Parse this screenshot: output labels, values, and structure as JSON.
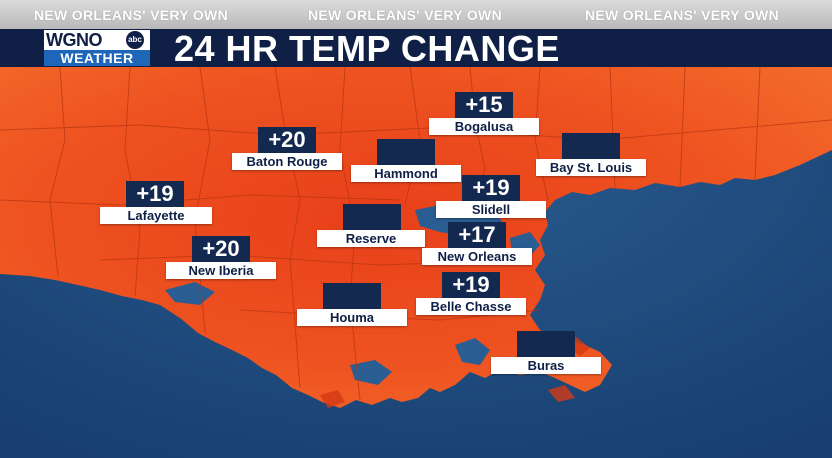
{
  "banner": {
    "slogans": [
      "NEW ORLEANS' VERY OWN",
      "NEW ORLEANS' VERY OWN",
      "NEW ORLEANS' VERY OWN"
    ],
    "title": "24 HR TEMP CHANGE"
  },
  "logo": {
    "station": "WGNO",
    "network": "abc",
    "tagline": "WEATHER"
  },
  "colors": {
    "land_hot": "#ee4a1a",
    "land_warm": "#f46a2a",
    "water": "#1d4f86",
    "banner_dark": "#0f1f45",
    "label_box": "#13294f"
  },
  "cities": [
    {
      "name": "Bogalusa",
      "value": "+15"
    },
    {
      "name": "Baton Rouge",
      "value": "+20"
    },
    {
      "name": "Hammond",
      "value": ""
    },
    {
      "name": "Bay St. Louis",
      "value": ""
    },
    {
      "name": "Lafayette",
      "value": "+19"
    },
    {
      "name": "Slidell",
      "value": "+19"
    },
    {
      "name": "Reserve",
      "value": ""
    },
    {
      "name": "New Orleans",
      "value": "+17"
    },
    {
      "name": "New Iberia",
      "value": "+20"
    },
    {
      "name": "Belle Chasse",
      "value": "+19"
    },
    {
      "name": "Houma",
      "value": ""
    },
    {
      "name": "Buras",
      "value": ""
    }
  ]
}
